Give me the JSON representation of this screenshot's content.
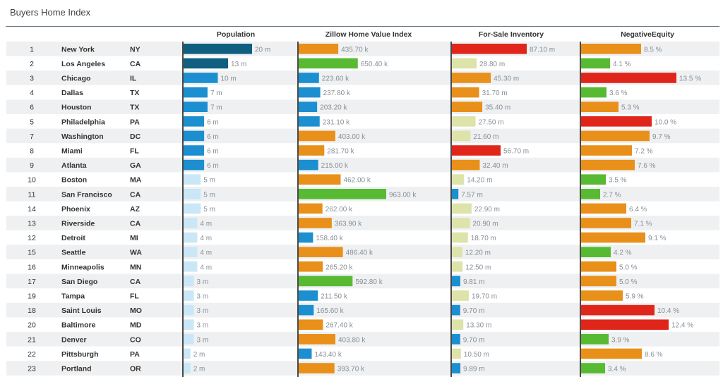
{
  "title": "Buyers Home Index",
  "columns": [
    "Population",
    "Zillow Home Value Index",
    "For-Sale Inventory",
    "NegativeEquity"
  ],
  "colors": {
    "dark_blue": "#105e80",
    "blue": "#1c8fd0",
    "light_blue": "#c9e7f7",
    "green": "#58ba32",
    "orange": "#e8901a",
    "red": "#e0251a",
    "pale": "#dde3a9",
    "row_alt": "#eef0f2",
    "value_text": "#8a8f96"
  },
  "chart_data": {
    "type": "table",
    "rows": [
      {
        "rank": "1",
        "city": "New York",
        "state": "NY",
        "pop": "20 m",
        "zhvi": "435.70 k",
        "inv": "87.10 m",
        "neg": "8.5 %",
        "c": [
          "dark_blue",
          "orange",
          "red",
          "orange"
        ],
        "v": [
          20,
          435.7,
          87.1,
          8.5
        ]
      },
      {
        "rank": "2",
        "city": "Los Angeles",
        "state": "CA",
        "pop": "13 m",
        "zhvi": "650.40 k",
        "inv": "28.80 m",
        "neg": "4.1 %",
        "c": [
          "dark_blue",
          "green",
          "pale",
          "green"
        ],
        "v": [
          13,
          650.4,
          28.8,
          4.1
        ]
      },
      {
        "rank": "3",
        "city": "Chicago",
        "state": "IL",
        "pop": "10 m",
        "zhvi": "223.60 k",
        "inv": "45.30 m",
        "neg": "13.5 %",
        "c": [
          "blue",
          "blue",
          "orange",
          "red"
        ],
        "v": [
          10,
          223.6,
          45.3,
          13.5
        ]
      },
      {
        "rank": "4",
        "city": "Dallas",
        "state": "TX",
        "pop": "7 m",
        "zhvi": "237.80 k",
        "inv": "31.70 m",
        "neg": "3.6 %",
        "c": [
          "blue",
          "blue",
          "orange",
          "green"
        ],
        "v": [
          7,
          237.8,
          31.7,
          3.6
        ]
      },
      {
        "rank": "6",
        "city": "Houston",
        "state": "TX",
        "pop": "7 m",
        "zhvi": "203.20 k",
        "inv": "35.40 m",
        "neg": "5.3 %",
        "c": [
          "blue",
          "blue",
          "orange",
          "orange"
        ],
        "v": [
          7,
          203.2,
          35.4,
          5.3
        ]
      },
      {
        "rank": "5",
        "city": "Philadelphia",
        "state": "PA",
        "pop": "6 m",
        "zhvi": "231.10 k",
        "inv": "27.50 m",
        "neg": "10.0 %",
        "c": [
          "blue",
          "blue",
          "pale",
          "red"
        ],
        "v": [
          6,
          231.1,
          27.5,
          10.0
        ]
      },
      {
        "rank": "7",
        "city": "Washington",
        "state": "DC",
        "pop": "6 m",
        "zhvi": "403.00 k",
        "inv": "21.60 m",
        "neg": "9.7 %",
        "c": [
          "blue",
          "orange",
          "pale",
          "orange"
        ],
        "v": [
          6,
          403.0,
          21.6,
          9.7
        ]
      },
      {
        "rank": "8",
        "city": "Miami",
        "state": "FL",
        "pop": "6 m",
        "zhvi": "281.70 k",
        "inv": "56.70 m",
        "neg": "7.2 %",
        "c": [
          "blue",
          "orange",
          "red",
          "orange"
        ],
        "v": [
          6,
          281.7,
          56.7,
          7.2
        ]
      },
      {
        "rank": "9",
        "city": "Atlanta",
        "state": "GA",
        "pop": "6 m",
        "zhvi": "215.00 k",
        "inv": "32.40 m",
        "neg": "7.6 %",
        "c": [
          "blue",
          "blue",
          "orange",
          "orange"
        ],
        "v": [
          6,
          215.0,
          32.4,
          7.6
        ]
      },
      {
        "rank": "10",
        "city": "Boston",
        "state": "MA",
        "pop": "5 m",
        "zhvi": "462.00 k",
        "inv": "14.20 m",
        "neg": "3.5 %",
        "c": [
          "light_blue",
          "orange",
          "pale",
          "green"
        ],
        "v": [
          5,
          462.0,
          14.2,
          3.5
        ]
      },
      {
        "rank": "11",
        "city": "San Francisco",
        "state": "CA",
        "pop": "5 m",
        "zhvi": "963.00 k",
        "inv": "7.57 m",
        "neg": "2.7 %",
        "c": [
          "light_blue",
          "green",
          "blue",
          "green"
        ],
        "v": [
          5,
          963.0,
          7.57,
          2.7
        ]
      },
      {
        "rank": "14",
        "city": "Phoenix",
        "state": "AZ",
        "pop": "5 m",
        "zhvi": "262.00 k",
        "inv": "22.90 m",
        "neg": "6.4 %",
        "c": [
          "light_blue",
          "orange",
          "pale",
          "orange"
        ],
        "v": [
          5,
          262.0,
          22.9,
          6.4
        ]
      },
      {
        "rank": "13",
        "city": "Riverside",
        "state": "CA",
        "pop": "4 m",
        "zhvi": "363.90 k",
        "inv": "20.90 m",
        "neg": "7.1 %",
        "c": [
          "light_blue",
          "orange",
          "pale",
          "orange"
        ],
        "v": [
          4,
          363.9,
          20.9,
          7.1
        ]
      },
      {
        "rank": "12",
        "city": "Detroit",
        "state": "MI",
        "pop": "4 m",
        "zhvi": "158.40 k",
        "inv": "18.70 m",
        "neg": "9.1 %",
        "c": [
          "light_blue",
          "blue",
          "pale",
          "orange"
        ],
        "v": [
          4,
          158.4,
          18.7,
          9.1
        ]
      },
      {
        "rank": "15",
        "city": "Seattle",
        "state": "WA",
        "pop": "4 m",
        "zhvi": "486.40 k",
        "inv": "12.20 m",
        "neg": "4.2 %",
        "c": [
          "light_blue",
          "orange",
          "pale",
          "green"
        ],
        "v": [
          4,
          486.4,
          12.2,
          4.2
        ]
      },
      {
        "rank": "16",
        "city": "Minneapolis",
        "state": "MN",
        "pop": "4 m",
        "zhvi": "265.20 k",
        "inv": "12.50 m",
        "neg": "5.0 %",
        "c": [
          "light_blue",
          "orange",
          "pale",
          "orange"
        ],
        "v": [
          4,
          265.2,
          12.5,
          5.0
        ]
      },
      {
        "rank": "17",
        "city": "San Diego",
        "state": "CA",
        "pop": "3 m",
        "zhvi": "592.80 k",
        "inv": "9.81 m",
        "neg": "5.0 %",
        "c": [
          "light_blue",
          "green",
          "blue",
          "orange"
        ],
        "v": [
          3,
          592.8,
          9.81,
          5.0
        ]
      },
      {
        "rank": "19",
        "city": "Tampa",
        "state": "FL",
        "pop": "3 m",
        "zhvi": "211.50 k",
        "inv": "19.70 m",
        "neg": "5.9 %",
        "c": [
          "light_blue",
          "blue",
          "pale",
          "orange"
        ],
        "v": [
          3,
          211.5,
          19.7,
          5.9
        ]
      },
      {
        "rank": "18",
        "city": "Saint Louis",
        "state": "MO",
        "pop": "3 m",
        "zhvi": "165.60 k",
        "inv": "9.70 m",
        "neg": "10.4 %",
        "c": [
          "light_blue",
          "blue",
          "blue",
          "red"
        ],
        "v": [
          3,
          165.6,
          9.7,
          10.4
        ]
      },
      {
        "rank": "20",
        "city": "Baltimore",
        "state": "MD",
        "pop": "3 m",
        "zhvi": "267.40 k",
        "inv": "13.30 m",
        "neg": "12.4 %",
        "c": [
          "light_blue",
          "orange",
          "pale",
          "red"
        ],
        "v": [
          3,
          267.4,
          13.3,
          12.4
        ]
      },
      {
        "rank": "21",
        "city": "Denver",
        "state": "CO",
        "pop": "3 m",
        "zhvi": "403.80 k",
        "inv": "9.70 m",
        "neg": "3.9 %",
        "c": [
          "light_blue",
          "orange",
          "blue",
          "green"
        ],
        "v": [
          3,
          403.8,
          9.7,
          3.9
        ]
      },
      {
        "rank": "22",
        "city": "Pittsburgh",
        "state": "PA",
        "pop": "2 m",
        "zhvi": "143.40 k",
        "inv": "10.50 m",
        "neg": "8.6 %",
        "c": [
          "light_blue",
          "blue",
          "pale",
          "orange"
        ],
        "v": [
          2,
          143.4,
          10.5,
          8.6
        ]
      },
      {
        "rank": "23",
        "city": "Portland",
        "state": "OR",
        "pop": "2 m",
        "zhvi": "393.70 k",
        "inv": "9.89 m",
        "neg": "3.4 %",
        "c": [
          "light_blue",
          "orange",
          "blue",
          "green"
        ],
        "v": [
          2,
          393.7,
          9.89,
          3.4
        ]
      }
    ]
  }
}
